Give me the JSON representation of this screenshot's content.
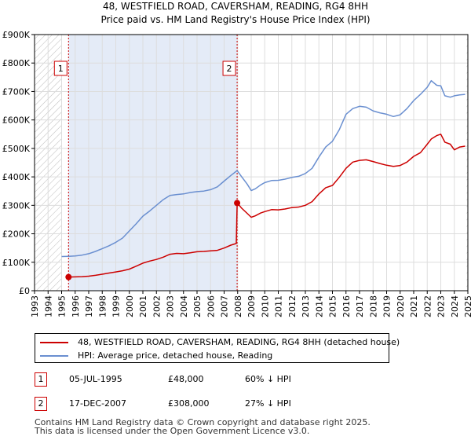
{
  "chart_data": {
    "type": "line",
    "title": "48, WESTFIELD ROAD, CAVERSHAM, READING, RG4 8HH",
    "subtitle": "Price paid vs. HM Land Registry's House Price Index (HPI)",
    "xlim": [
      1993,
      2025
    ],
    "ylim": [
      0,
      900000
    ],
    "yticks": [
      0,
      100000,
      200000,
      300000,
      400000,
      500000,
      600000,
      700000,
      800000,
      900000
    ],
    "ytick_labels": [
      "£0",
      "£100K",
      "£200K",
      "£300K",
      "£400K",
      "£500K",
      "£600K",
      "£700K",
      "£800K",
      "£900K"
    ],
    "xticks": [
      "1993",
      "1994",
      "1995",
      "1996",
      "1997",
      "1998",
      "1999",
      "2000",
      "2001",
      "2002",
      "2003",
      "2004",
      "2005",
      "2006",
      "2007",
      "2008",
      "2009",
      "2010",
      "2011",
      "2012",
      "2013",
      "2014",
      "2015",
      "2016",
      "2017",
      "2018",
      "2019",
      "2020",
      "2021",
      "2022",
      "2023",
      "2024",
      "2025"
    ],
    "grid": true,
    "hatched_regions": [
      [
        1993,
        1995.0
      ],
      [
        2024.9,
        2025
      ]
    ],
    "shaded_region": [
      1995.51,
      2007.96
    ],
    "series": [
      {
        "name": "48, WESTFIELD ROAD, CAVERSHAM, READING, RG4 8HH (detached house)",
        "color": "#cc0000",
        "x": [
          1995.51,
          1996,
          1996.5,
          1997,
          1997.5,
          1998,
          1998.5,
          1999,
          1999.5,
          2000,
          2000.5,
          2001,
          2001.5,
          2002,
          2002.5,
          2003,
          2003.5,
          2004,
          2004.5,
          2005,
          2005.5,
          2006,
          2006.5,
          2007,
          2007.5,
          2007.9,
          2007.96,
          2008.3,
          2008.7,
          2009,
          2009.3,
          2009.7,
          2010,
          2010.5,
          2011,
          2011.5,
          2012,
          2012.5,
          2013,
          2013.5,
          2014,
          2014.5,
          2015,
          2015.5,
          2016,
          2016.5,
          2017,
          2017.5,
          2018,
          2018.5,
          2019,
          2019.5,
          2020,
          2020.5,
          2021,
          2021.5,
          2022,
          2022.3,
          2022.7,
          2023,
          2023.3,
          2023.7,
          2024,
          2024.4,
          2024.8
        ],
        "y": [
          48000,
          48500,
          49500,
          51000,
          54000,
          58000,
          62000,
          66000,
          70000,
          76000,
          86000,
          97000,
          104000,
          110000,
          118000,
          128000,
          131000,
          130000,
          133000,
          137000,
          138000,
          140000,
          142000,
          150000,
          160000,
          166000,
          308000,
          290000,
          272000,
          258000,
          263000,
          273000,
          278000,
          285000,
          284000,
          287000,
          292000,
          294000,
          300000,
          313000,
          340000,
          362000,
          370000,
          398000,
          430000,
          452000,
          458000,
          460000,
          454000,
          447000,
          441000,
          437000,
          440000,
          452000,
          472000,
          485000,
          515000,
          533000,
          545000,
          550000,
          522000,
          515000,
          495000,
          505000,
          508000
        ]
      },
      {
        "name": "HPI: Average price, detached house, Reading",
        "color": "#6a8fd0",
        "x": [
          1995.0,
          1995.51,
          1996,
          1996.5,
          1997,
          1997.5,
          1998,
          1998.5,
          1999,
          1999.5,
          2000,
          2000.5,
          2001,
          2001.5,
          2002,
          2002.5,
          2003,
          2003.5,
          2004,
          2004.5,
          2005,
          2005.5,
          2006,
          2006.5,
          2007,
          2007.5,
          2007.96,
          2008.3,
          2008.7,
          2009,
          2009.3,
          2009.7,
          2010,
          2010.5,
          2011,
          2011.5,
          2012,
          2012.5,
          2013,
          2013.5,
          2014,
          2014.5,
          2015,
          2015.5,
          2016,
          2016.5,
          2017,
          2017.5,
          2018,
          2018.5,
          2019,
          2019.5,
          2020,
          2020.5,
          2021,
          2021.5,
          2022,
          2022.3,
          2022.7,
          2023,
          2023.3,
          2023.7,
          2024,
          2024.4,
          2024.8
        ],
        "y": [
          120000,
          121000,
          122000,
          125000,
          130000,
          138000,
          148000,
          158000,
          170000,
          185000,
          210000,
          235000,
          262000,
          280000,
          300000,
          320000,
          335000,
          338000,
          340000,
          345000,
          348000,
          350000,
          355000,
          365000,
          385000,
          405000,
          422000,
          400000,
          375000,
          352000,
          358000,
          372000,
          380000,
          387000,
          388000,
          392000,
          398000,
          402000,
          412000,
          430000,
          470000,
          505000,
          525000,
          565000,
          620000,
          640000,
          648000,
          645000,
          632000,
          625000,
          620000,
          612000,
          618000,
          640000,
          668000,
          690000,
          715000,
          738000,
          722000,
          720000,
          685000,
          680000,
          685000,
          688000,
          690000
        ]
      }
    ],
    "transactions": [
      {
        "id": "1",
        "x": 1995.51,
        "y": 48000
      },
      {
        "id": "2",
        "x": 2007.96,
        "y": 308000
      }
    ]
  },
  "legend": {
    "red_label": "48, WESTFIELD ROAD, CAVERSHAM, READING, RG4 8HH (detached house)",
    "blue_label": "HPI: Average price, detached house, Reading"
  },
  "table": [
    {
      "id": "1",
      "date": "05-JUL-1995",
      "price": "£48,000",
      "hpi": "60% ↓ HPI"
    },
    {
      "id": "2",
      "date": "17-DEC-2007",
      "price": "£308,000",
      "hpi": "27% ↓ HPI"
    }
  ],
  "footer": {
    "line1": "Contains HM Land Registry data © Crown copyright and database right 2025.",
    "line2": "This data is licensed under the Open Government Licence v3.0."
  },
  "colors": {
    "red": "#cc0000",
    "blue": "#6a8fd0",
    "shade": "#dde6f5",
    "grid": "#dddddd"
  }
}
